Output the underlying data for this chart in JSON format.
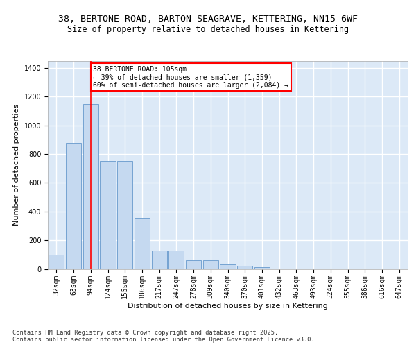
{
  "title1": "38, BERTONE ROAD, BARTON SEAGRAVE, KETTERING, NN15 6WF",
  "title2": "Size of property relative to detached houses in Kettering",
  "xlabel": "Distribution of detached houses by size in Kettering",
  "ylabel": "Number of detached properties",
  "categories": [
    "32sqm",
    "63sqm",
    "94sqm",
    "124sqm",
    "155sqm",
    "186sqm",
    "217sqm",
    "247sqm",
    "278sqm",
    "309sqm",
    "340sqm",
    "370sqm",
    "401sqm",
    "432sqm",
    "463sqm",
    "493sqm",
    "524sqm",
    "555sqm",
    "586sqm",
    "616sqm",
    "647sqm"
  ],
  "values": [
    100,
    875,
    1150,
    750,
    750,
    355,
    130,
    130,
    60,
    60,
    30,
    20,
    10,
    0,
    0,
    0,
    0,
    0,
    0,
    0,
    0
  ],
  "bar_color": "#c5d9f0",
  "bar_edge_color": "#6699cc",
  "vline_x": 2,
  "vline_color": "red",
  "annotation_text": "38 BERTONE ROAD: 105sqm\n← 39% of detached houses are smaller (1,359)\n60% of semi-detached houses are larger (2,084) →",
  "annotation_box_color": "white",
  "annotation_box_edge_color": "red",
  "ylim": [
    0,
    1450
  ],
  "yticks": [
    0,
    200,
    400,
    600,
    800,
    1000,
    1200,
    1400
  ],
  "background_color": "#dce9f7",
  "grid_color": "white",
  "footer": "Contains HM Land Registry data © Crown copyright and database right 2025.\nContains public sector information licensed under the Open Government Licence v3.0.",
  "title_fontsize": 9.5,
  "subtitle_fontsize": 8.5,
  "axis_label_fontsize": 8,
  "tick_fontsize": 7
}
